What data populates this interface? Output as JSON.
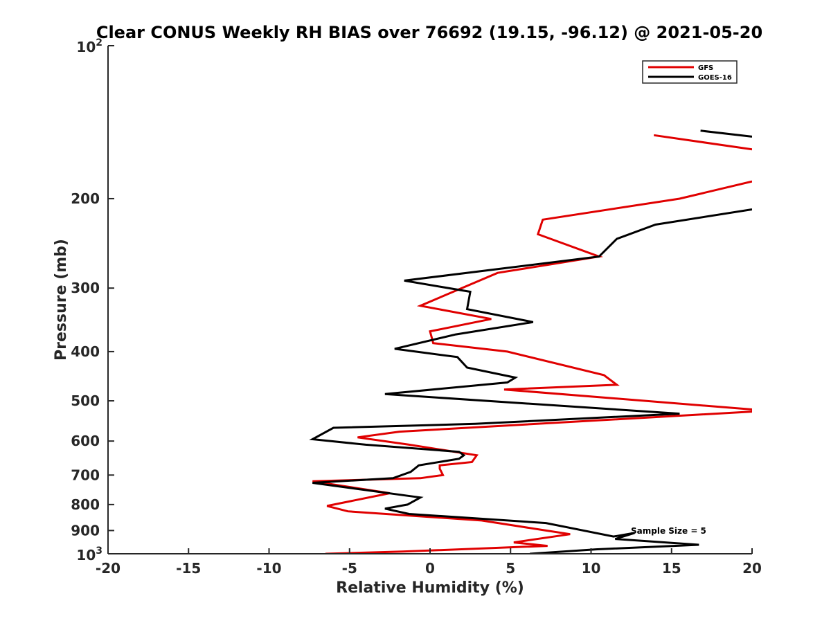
{
  "chart_data": {
    "type": "line",
    "title": "Clear CONUS Weekly RH BIAS over 76692 (19.15, -96.12) @ 2021-05-20",
    "xlabel": "Relative Humidity (%)",
    "ylabel": "Pressure (mb)",
    "xlim": [
      -20,
      20
    ],
    "ylim": [
      1000,
      100
    ],
    "yscale": "log",
    "x_ticks": [
      -20,
      -15,
      -10,
      -5,
      0,
      5,
      10,
      15,
      20
    ],
    "x_tick_labels": [
      "-20",
      "-15",
      "-10",
      "-5",
      "0",
      "5",
      "10",
      "15",
      "20"
    ],
    "y_ticks": [
      200,
      300,
      400,
      500,
      600,
      700,
      800,
      900
    ],
    "y_tick_labels": [
      "200",
      "300",
      "400",
      "500",
      "600",
      "700",
      "800",
      "900"
    ],
    "y_top_label": {
      "base": "10",
      "exp": "2"
    },
    "y_bottom_label": {
      "base": "10",
      "exp": "3"
    },
    "legend_position": "top-right",
    "annotation": "Sample Size = 5",
    "series": [
      {
        "name": "GFS",
        "color": "#e00000",
        "segments": [
          {
            "x": [
              13.9,
              20
            ],
            "y": [
              150,
              160
            ]
          },
          {
            "x": [
              20,
              15.5,
              7,
              6.7,
              10.5,
              4.2,
              -0.6,
              3.8,
              0,
              0.2,
              4.8,
              10.8,
              11.6,
              4.6,
              20,
              20,
              -1.9,
              -4.5,
              -1.3,
              2.9,
              2.6,
              0.6,
              0.6,
              0.8,
              -0.6,
              -7.3,
              -2.5,
              -6.4,
              -5.1,
              3.2,
              7.2,
              8.7,
              5.2,
              7.3,
              -1.7,
              -6.5
            ],
            "y": [
              185,
              200,
              220,
              235,
              260,
              280,
              325,
              345,
              365,
              385,
              400,
              445,
              465,
              475,
              520,
              525,
              575,
              590,
              610,
              640,
              660,
              670,
              680,
              700,
              710,
              720,
              760,
              805,
              825,
              860,
              900,
              915,
              950,
              965,
              990,
              1000
            ]
          }
        ]
      },
      {
        "name": "GOES-16",
        "color": "#000000",
        "segments": [
          {
            "x": [
              16.8,
              20
            ],
            "y": [
              147,
              151
            ]
          },
          {
            "x": [
              20,
              14,
              11.6,
              10.5,
              -1.6,
              2.5,
              2.3,
              6.4,
              1.6,
              -2.2,
              1.7,
              2.3,
              5.3,
              4.8,
              -2.8,
              15.5,
              2.8,
              -6,
              -7.3,
              -4,
              1.8,
              2.1,
              1.8,
              -0.7,
              -1.2,
              -2.3,
              -7.3,
              -0.6,
              -1.4,
              -2.8,
              -1.3,
              7.2,
              11.4,
              12.7,
              11.5,
              16.7,
              10.3,
              6.2
            ],
            "y": [
              210,
              225,
              240,
              260,
              290,
              305,
              330,
              350,
              370,
              395,
              410,
              430,
              450,
              460,
              485,
              530,
              555,
              565,
              595,
              610,
              630,
              640,
              650,
              670,
              690,
              710,
              725,
              775,
              800,
              815,
              835,
              870,
              925,
              910,
              935,
              960,
              980,
              1000
            ]
          }
        ]
      }
    ]
  }
}
